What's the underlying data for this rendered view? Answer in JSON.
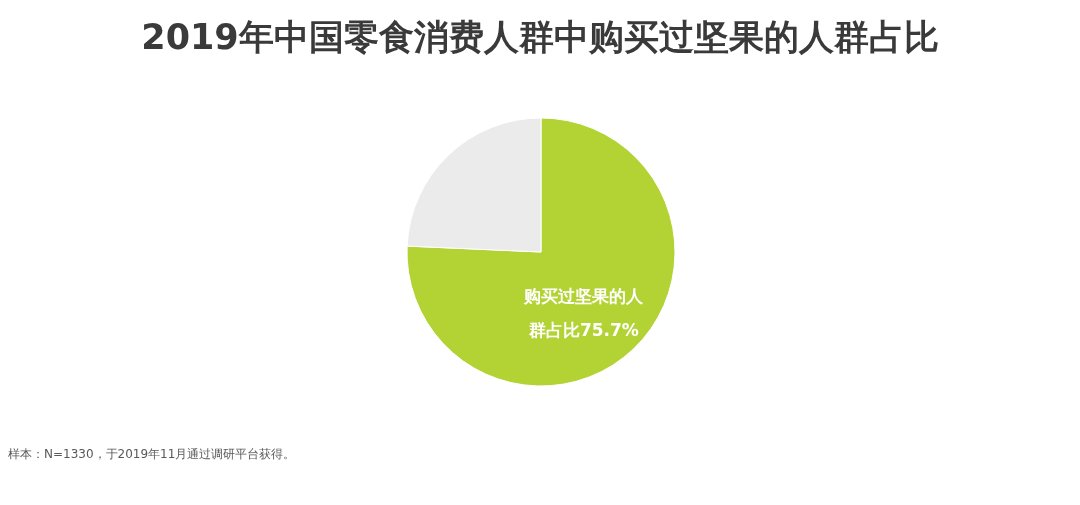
{
  "chart_data": {
    "type": "pie",
    "title": "2019年中国零食消费人群中购买过坚果的人群占比",
    "categories": [
      "购买过坚果的人群占比",
      null
    ],
    "values": [
      75.7,
      24.3
    ],
    "colors": [
      "#b3d335",
      "#ebebeb"
    ],
    "value_labels": [
      "75.7%",
      null
    ],
    "annotations": [
      "样本：N=1330，于2019年11月通过调研平台获得。"
    ]
  }
}
